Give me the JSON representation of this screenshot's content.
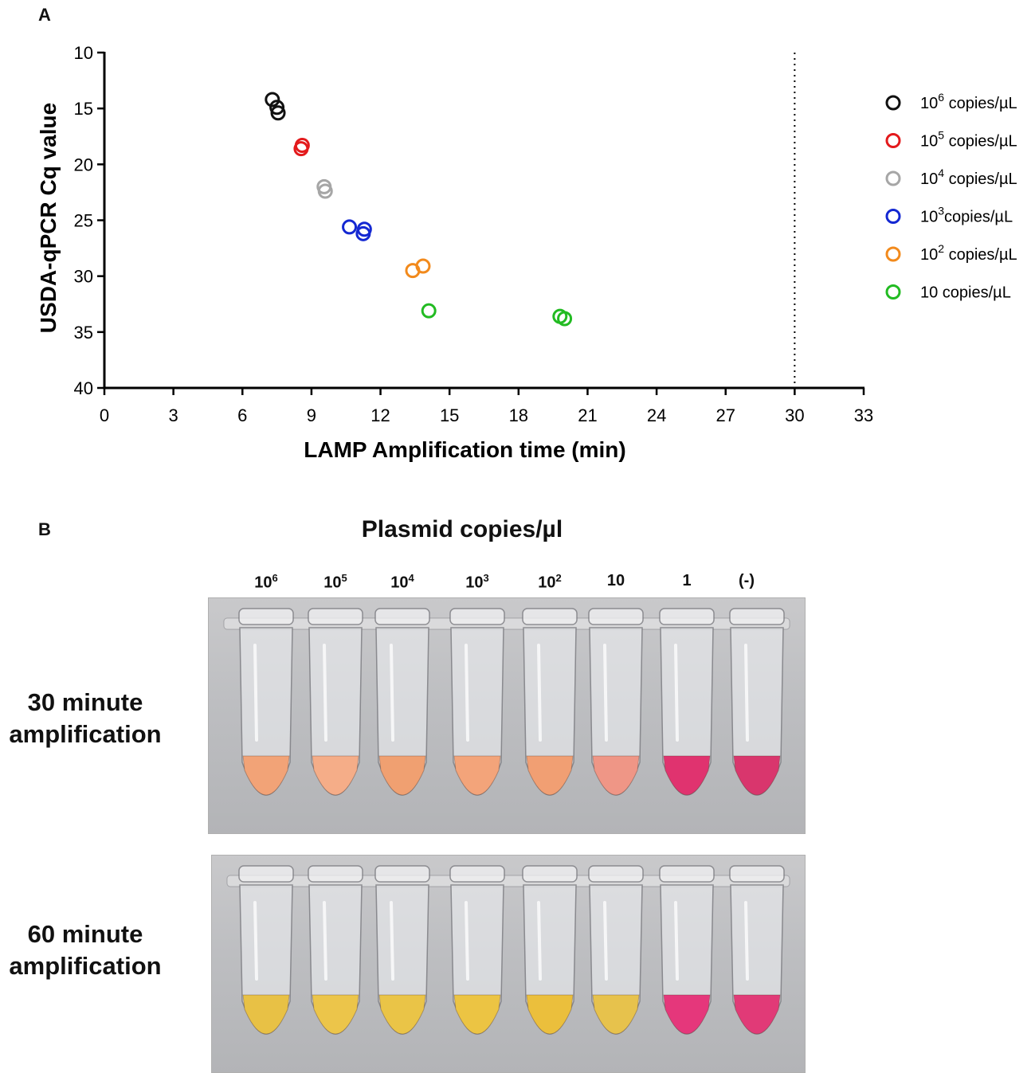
{
  "panel_a_label": "A",
  "panel_b_label": "B",
  "chart_data": {
    "type": "scatter",
    "title": "",
    "xlabel": "LAMP Amplification time (min)",
    "ylabel": "USDA-qPCR Cq value",
    "xlim": [
      0,
      33
    ],
    "ylim": [
      10,
      40
    ],
    "y_inverted": true,
    "x_ticks": [
      "0",
      "3",
      "6",
      "9",
      "12",
      "15",
      "18",
      "21",
      "24",
      "27",
      "30",
      "33"
    ],
    "y_ticks": [
      "10",
      "15",
      "20",
      "25",
      "30",
      "35",
      "40"
    ],
    "reference_line_x": 30,
    "legend_position": "right",
    "series": [
      {
        "name": "10",
        "exp": "6",
        "suffix": " copies/µL",
        "color": "#111111",
        "points": [
          [
            7.3,
            14.2
          ],
          [
            7.5,
            14.9
          ],
          [
            7.55,
            15.4
          ]
        ]
      },
      {
        "name": "10",
        "exp": "5",
        "suffix": " copies/µL",
        "color": "#e31a1c",
        "points": [
          [
            8.6,
            18.3
          ],
          [
            8.55,
            18.6
          ]
        ]
      },
      {
        "name": "10",
        "exp": "4",
        "suffix": " copies/µL",
        "color": "#a6a6a6",
        "points": [
          [
            9.55,
            22.0
          ],
          [
            9.6,
            22.4
          ]
        ]
      },
      {
        "name": "10",
        "exp": "3",
        "suffix": "copies/µL",
        "color": "#1428d2",
        "points": [
          [
            10.65,
            25.6
          ],
          [
            11.3,
            25.8
          ],
          [
            11.25,
            26.2
          ]
        ]
      },
      {
        "name": "10",
        "exp": "2",
        "suffix": " copies/µL",
        "color": "#f28a1c",
        "points": [
          [
            13.4,
            29.5
          ],
          [
            13.85,
            29.1
          ]
        ]
      },
      {
        "name": "10 copies/µL",
        "exp": "",
        "suffix": "",
        "color": "#22bb22",
        "points": [
          [
            14.1,
            33.1
          ],
          [
            19.8,
            33.6
          ],
          [
            20.0,
            33.8
          ]
        ]
      }
    ]
  },
  "panel_b": {
    "title": "Plasmid copies/µl",
    "columns": [
      {
        "base": "10",
        "exp": "6"
      },
      {
        "base": "10",
        "exp": "5"
      },
      {
        "base": "10",
        "exp": "4"
      },
      {
        "base": "10",
        "exp": "3"
      },
      {
        "base": "10",
        "exp": "2"
      },
      {
        "base": "10",
        "exp": ""
      },
      {
        "base": "1",
        "exp": ""
      },
      {
        "base": "(-)",
        "exp": ""
      }
    ],
    "rows": [
      {
        "label_line1": "30 minute",
        "label_line2": "amplification",
        "tube_colors": [
          "#f2a377",
          "#f5ad88",
          "#f0a071",
          "#f3a47a",
          "#f19f73",
          "#ef9686",
          "#e0336f",
          "#d9366d"
        ]
      },
      {
        "label_line1": "60 minute",
        "label_line2": "amplification",
        "tube_colors": [
          "#e8c145",
          "#ecc54a",
          "#eac447",
          "#ecc443",
          "#ebbf3c",
          "#e7c24c",
          "#e5377b",
          "#e13a77"
        ]
      }
    ]
  }
}
